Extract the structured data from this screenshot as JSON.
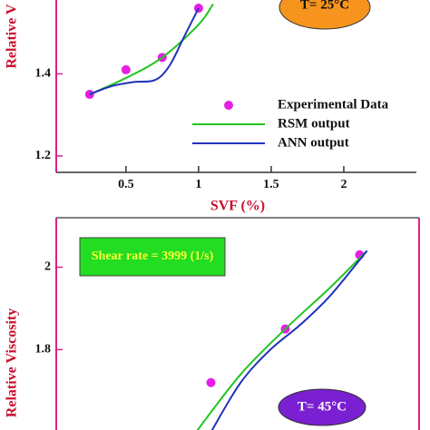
{
  "chart_data": [
    {
      "type": "line",
      "ylabel": "Relative V",
      "xlabel": "SVF (%)",
      "annotation": "T= 25°C",
      "xlim": [
        0.02,
        2.5
      ],
      "xticks": [
        0.5,
        1,
        1.5,
        2
      ],
      "ylim": [
        1.16,
        1.58
      ],
      "yticks": [
        1.2,
        1.4
      ],
      "series": [
        {
          "name": "Experimental Data",
          "color": "#e61ee6",
          "style": "markers",
          "x": [
            0.25,
            0.5,
            0.75,
            1.0
          ],
          "values": [
            1.35,
            1.41,
            1.44,
            1.56
          ]
        },
        {
          "name": "RSM output",
          "color": "#22c422",
          "style": "line",
          "x": [
            0.25,
            0.5,
            0.75,
            1.0,
            1.1
          ],
          "values": [
            1.35,
            1.39,
            1.44,
            1.52,
            1.57
          ]
        },
        {
          "name": "ANN output",
          "color": "#2233bb",
          "style": "line",
          "x": [
            0.25,
            0.4,
            0.55,
            0.7,
            0.8,
            0.9,
            1.0
          ],
          "values": [
            1.35,
            1.37,
            1.38,
            1.385,
            1.42,
            1.49,
            1.56
          ]
        }
      ]
    },
    {
      "type": "line",
      "ylabel": "Relative Viscosity",
      "annotations": [
        "Shear rate = 3999 (1/s)",
        "T= 45°C"
      ],
      "xlim": [
        -0.04,
        2.4
      ],
      "ylim": [
        1.605,
        2.12
      ],
      "yticks": [
        1.8,
        2
      ],
      "series": [
        {
          "color": "#e61ee6",
          "style": "markers",
          "x": [
            1.0,
            1.5,
            2.0
          ],
          "values": [
            1.72,
            1.85,
            2.03
          ]
        },
        {
          "color": "#22c422",
          "style": "line",
          "x": [
            0.9,
            1.2,
            1.5,
            1.8,
            2.05
          ],
          "values": [
            1.6,
            1.74,
            1.85,
            1.95,
            2.04
          ]
        },
        {
          "color": "#2233bb",
          "style": "line",
          "x": [
            1.0,
            1.2,
            1.4,
            1.6,
            1.8,
            2.05
          ],
          "values": [
            1.6,
            1.72,
            1.8,
            1.86,
            1.93,
            2.04
          ]
        }
      ]
    }
  ]
}
